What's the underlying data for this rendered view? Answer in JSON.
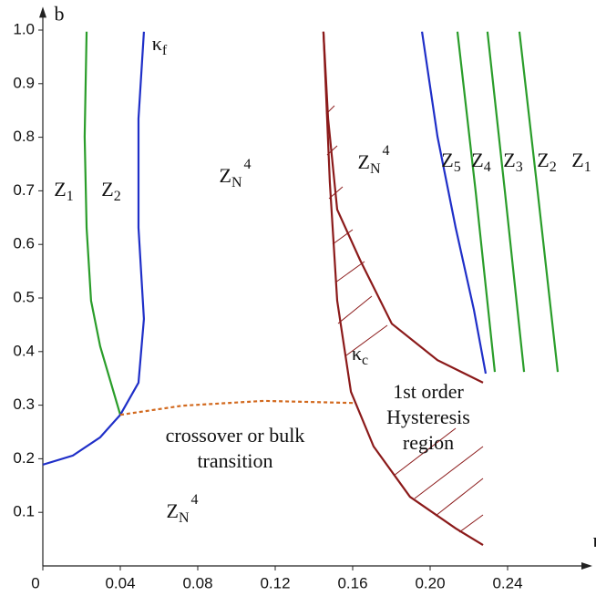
{
  "chart_data": {
    "type": "line",
    "x_label": "κ",
    "y_label": "b",
    "xlim": [
      0,
      0.28
    ],
    "ylim": [
      0,
      1.03
    ],
    "xticks": [
      0,
      0.04,
      0.08,
      0.12,
      0.16,
      {
        "value": 0.2,
        "label": "0.20"
      },
      0.24
    ],
    "yticks": [
      0.1,
      0.2,
      0.3,
      0.4,
      0.5,
      0.6,
      0.7,
      0.8,
      0.9,
      {
        "value": 1.0,
        "label": "1.0"
      }
    ],
    "series": [
      {
        "color": "#2a9d2a",
        "x": [
          0.0226,
          0.0216,
          0.0226,
          0.0249,
          0.0296,
          0.04
        ],
        "values": [
          0.997,
          0.801,
          0.631,
          0.495,
          0.41,
          0.282
        ]
      },
      {
        "color": "#1f2fc8",
        "x": [
          0.0522,
          0.0494,
          0.0494,
          0.0522,
          0.0494,
          0.04,
          0.0296,
          0.0155,
          0
        ],
        "values": [
          0.997,
          0.835,
          0.631,
          0.461,
          0.342,
          0.282,
          0.24,
          0.206,
          0.189
        ]
      },
      {
        "color": "#d2691e",
        "dashed": true,
        "x": [
          0.04,
          0.072,
          0.1141,
          0.1614
        ],
        "values": [
          0.282,
          0.299,
          0.308,
          0.304
        ]
      },
      {
        "color": "#8b1a1a",
        "x": [
          0.1449,
          0.1473,
          0.152,
          0.1638,
          0.1802,
          0.2038,
          0.2273
        ],
        "values": [
          0.997,
          0.835,
          0.665,
          0.571,
          0.452,
          0.384,
          0.342
        ]
      },
      {
        "color": "#8b1a1a",
        "x": [
          0.1449,
          0.1482,
          0.152,
          0.1591,
          0.1708,
          0.1896,
          0.2132,
          0.2273
        ],
        "values": [
          0.997,
          0.716,
          0.495,
          0.325,
          0.223,
          0.129,
          0.07,
          0.039
        ]
      },
      {
        "color": "#1f2fc8",
        "x": [
          0.1958,
          0.2038,
          0.2132,
          0.2226,
          0.2287
        ],
        "values": [
          0.997,
          0.801,
          0.631,
          0.478,
          0.359
        ]
      },
      {
        "color": "#2a9d2a",
        "x": [
          0.2141,
          0.2235,
          0.2334
        ],
        "values": [
          0.997,
          0.699,
          0.362
        ]
      },
      {
        "color": "#2a9d2a",
        "x": [
          0.2296,
          0.2386,
          0.2485
        ],
        "values": [
          0.997,
          0.699,
          0.362
        ]
      },
      {
        "color": "#2a9d2a",
        "x": [
          0.2461,
          0.2555,
          0.2659
        ],
        "values": [
          0.997,
          0.699,
          0.362
        ]
      }
    ],
    "annotations": [
      {
        "text": "Z",
        "sub": "1"
      },
      {
        "text": "Z",
        "sub": "2"
      },
      {
        "text": "Z",
        "sub": "N",
        "sup": "4"
      },
      {
        "text": "κ",
        "sub": "f",
        "color": "#1f2fc8"
      },
      {
        "text": "Z",
        "sub": "N",
        "sup": "4"
      },
      {
        "text": "Z",
        "sub": "5"
      },
      {
        "text": "Z",
        "sub": "4"
      },
      {
        "text": "Z",
        "sub": "3"
      },
      {
        "text": "Z",
        "sub": "2"
      },
      {
        "text": "Z",
        "sub": "1"
      },
      {
        "text": "κ",
        "sub": "c",
        "color": "#8b1a1a"
      },
      {
        "text": "1st order",
        "color": "#8b1a1a"
      },
      {
        "text": "Hysteresis",
        "color": "#8b1a1a"
      },
      {
        "text": "region",
        "color": "#8b1a1a"
      },
      {
        "text": "crossover or bulk",
        "color": "#c8692a"
      },
      {
        "text": "transition",
        "color": "#c8692a"
      },
      {
        "text": "Z",
        "sub": "N",
        "sup": "4"
      }
    ]
  }
}
